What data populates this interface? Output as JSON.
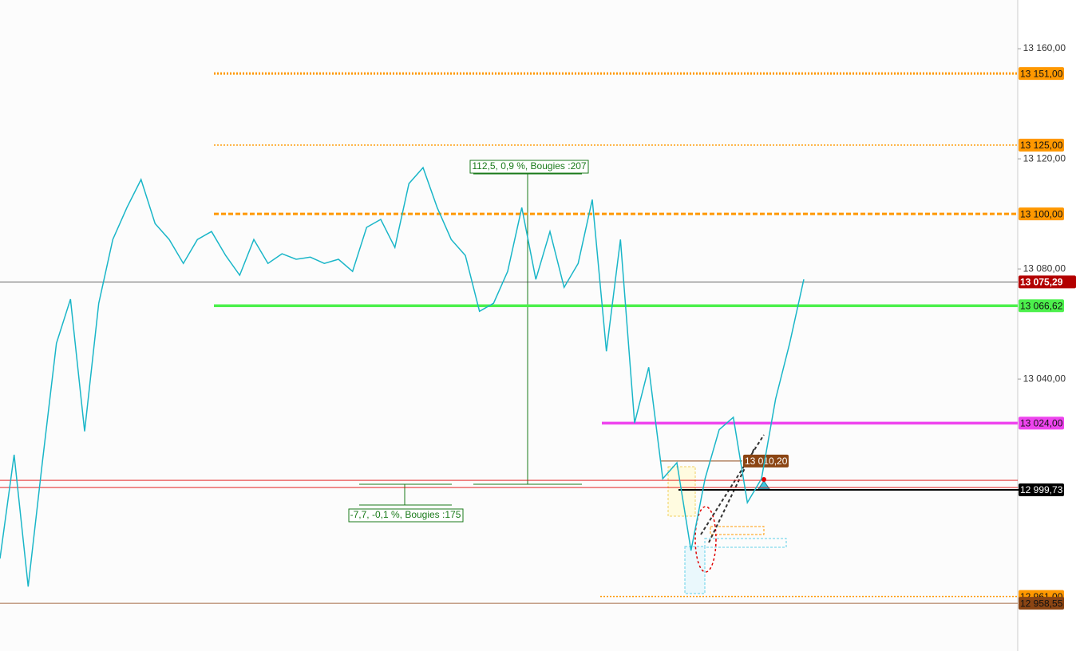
{
  "chart_data": {
    "type": "line",
    "color": "#1ab6c8",
    "values": [
      12974.8,
      13012.5,
      12964.6,
      13009.6,
      13053,
      13069,
      13021,
      13067.5,
      13090.7,
      13102.3,
      13112.5,
      13096.5,
      13090.7,
      13082,
      13090.7,
      13093.6,
      13084.9,
      13077.7,
      13090.7,
      13082,
      13085.5,
      13083.5,
      13084.3,
      13082,
      13083.5,
      13079.1,
      13095.1,
      13098,
      13087.8,
      13111,
      13116.8,
      13102.3,
      13090.7,
      13084.9,
      13064.6,
      13067.5,
      13079.1,
      13102.3,
      13076.2,
      13093.6,
      13073.3,
      13082,
      13105.2,
      13050.1,
      13090.7,
      13024,
      13044.3,
      13003.8,
      13009.6,
      12977.7,
      13003.8,
      13021.6,
      13026.1,
      12995.1,
      13003.8,
      13032.8,
      13053,
      13076.2
    ],
    "ylim": [
      12941.2,
      13177.7
    ],
    "yticks": [
      {
        "value": 13160,
        "label": "13 160,00"
      },
      {
        "value": 13120,
        "label": "13 120,00"
      },
      {
        "value": 13080,
        "label": "13 080,00"
      },
      {
        "value": 13040,
        "label": "13 040,00"
      }
    ],
    "levels": [
      {
        "value": 13151,
        "label": "13 151,00",
        "color": "#ff9800",
        "style": "dotted"
      },
      {
        "value": 13125,
        "label": "13 125,00",
        "color": "#ff9800",
        "style": "dotted"
      },
      {
        "value": 13100,
        "label": "13 100,00",
        "color": "#ff9800",
        "style": "dashed"
      },
      {
        "value": 13075.29,
        "label": "13 075,29",
        "color": "#b30000",
        "style": "solid"
      },
      {
        "value": 13066.62,
        "label": "13 066,62",
        "color": "#4cf04c",
        "style": "solid"
      },
      {
        "value": 13024,
        "label": "13 024,00",
        "color": "#ee44ee",
        "style": "solid"
      },
      {
        "value": 13010.2,
        "label": "13 010,20",
        "color": "#8b4513",
        "style": "solid"
      },
      {
        "value": 12999.73,
        "label": "12 999,73",
        "color": "#000000",
        "style": "solid"
      },
      {
        "value": 12961,
        "label": "12 961,00",
        "color": "#ff9800",
        "style": "dotted"
      },
      {
        "value": 12958.55,
        "label": "12 958,55",
        "color": "#8b4513",
        "style": "solid"
      },
      {
        "value": 13003.2,
        "color": "#e00000",
        "style": "solid"
      },
      {
        "value": 13000.6,
        "color": "#e00000",
        "style": "solid"
      }
    ],
    "annotations": [
      "112,5, 0,9 %, Bougies :207",
      "-7,7, -0,1 %, Bougies :175"
    ]
  }
}
